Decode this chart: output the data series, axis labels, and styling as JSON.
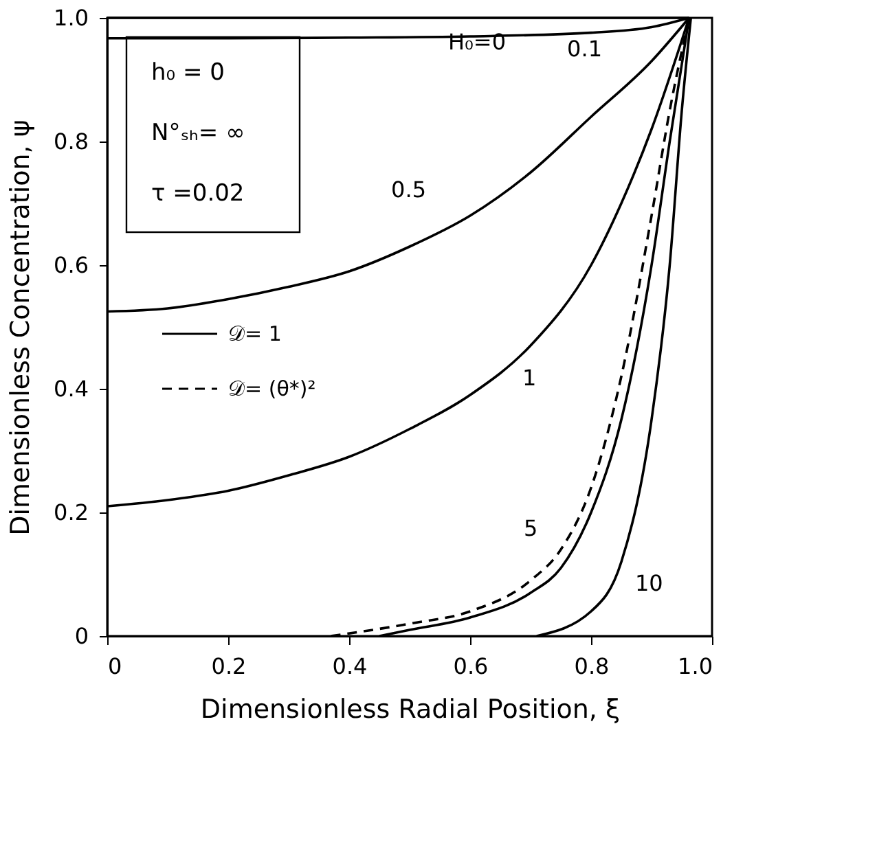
{
  "chart_data": {
    "type": "line",
    "xlabel": "Dimensionless Radial Position, ξ",
    "ylabel": "Dimensionless Concentration, ψ",
    "xlim": [
      0,
      1.0
    ],
    "ylim": [
      0,
      1.0
    ],
    "xticks": [
      0,
      0.2,
      0.4,
      0.6,
      0.8,
      {
        "value": 1.0,
        "label": "1.0"
      }
    ],
    "yticks": [
      0,
      0.2,
      0.4,
      0.6,
      0.8,
      {
        "value": 1.0,
        "label": "1.0"
      }
    ],
    "grid": false,
    "marker": "none",
    "line_style": "solid",
    "series": [
      {
        "color": "#000000",
        "x": [
          0,
          0.962
        ],
        "values": [
          1.0,
          1.0
        ]
      },
      {
        "color": "#000000",
        "x": [
          0,
          0.2,
          0.4,
          0.6,
          0.8,
          0.9,
          0.962
        ],
        "values": [
          0.967,
          0.967,
          0.968,
          0.97,
          0.976,
          0.985,
          1.0
        ]
      },
      {
        "color": "#000000",
        "x": [
          0,
          0.1,
          0.2,
          0.3,
          0.4,
          0.5,
          0.6,
          0.7,
          0.8,
          0.9,
          0.962
        ],
        "values": [
          0.525,
          0.53,
          0.545,
          0.565,
          0.59,
          0.63,
          0.68,
          0.75,
          0.84,
          0.93,
          1.0
        ]
      },
      {
        "color": "#000000",
        "x": [
          0,
          0.1,
          0.2,
          0.3,
          0.4,
          0.5,
          0.6,
          0.7,
          0.8,
          0.85,
          0.9,
          0.962
        ],
        "values": [
          0.21,
          0.22,
          0.235,
          0.26,
          0.29,
          0.335,
          0.39,
          0.47,
          0.6,
          0.7,
          0.82,
          1.0
        ]
      },
      {
        "color": "#000000",
        "x": [
          0.45,
          0.5,
          0.6,
          0.7,
          0.75,
          0.8,
          0.85,
          0.9,
          0.93,
          0.962
        ],
        "values": [
          0,
          0.01,
          0.03,
          0.07,
          0.11,
          0.2,
          0.35,
          0.6,
          0.8,
          1.0
        ]
      },
      {
        "color": "#000000",
        "line_style": "dashed",
        "x": [
          0.37,
          0.5,
          0.6,
          0.7,
          0.75,
          0.8,
          0.85,
          0.9,
          0.93,
          0.962
        ],
        "values": [
          0,
          0.02,
          0.04,
          0.09,
          0.14,
          0.24,
          0.42,
          0.68,
          0.85,
          1.0
        ]
      },
      {
        "color": "#000000",
        "x": [
          0.71,
          0.8,
          0.85,
          0.9,
          0.93,
          0.95,
          0.965
        ],
        "values": [
          0,
          0.04,
          0.12,
          0.35,
          0.6,
          0.85,
          1.0
        ]
      }
    ],
    "annotations": [
      "h₀ = 0",
      "N°ₛₕ= ∞",
      "τ  =0.02",
      "𝒟= 1",
      "𝒟= (θ*)²",
      {
        "text": "H₀=0",
        "x": 0.7,
        "y": 1.0
      },
      {
        "text": "0.1",
        "x": 0.85,
        "y": 0.98
      },
      {
        "text": "0.5",
        "x": 0.55,
        "y": 0.655
      },
      {
        "text": "1",
        "x": 0.7,
        "y": 0.47
      },
      {
        "text": "5",
        "x": 0.78,
        "y": 0.16
      },
      {
        "text": "10",
        "x": 0.85,
        "y": 0.12
      }
    ]
  }
}
